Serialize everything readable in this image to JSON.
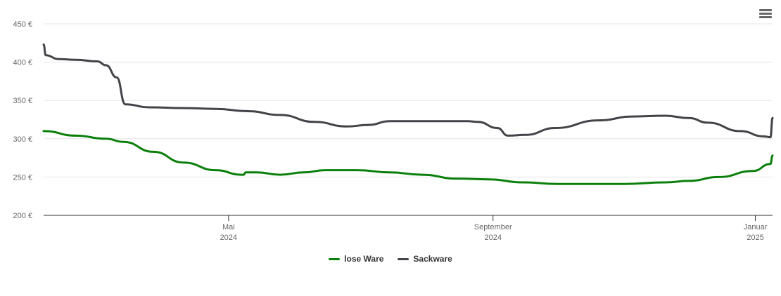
{
  "menu": {
    "icon": "hamburger-menu-icon"
  },
  "chart_data": {
    "type": "line",
    "title": "",
    "xlabel": "",
    "ylabel": "",
    "ylim": [
      200,
      450
    ],
    "yticks": [
      200,
      250,
      300,
      350,
      400,
      450
    ],
    "ytick_labels": [
      "200 €",
      "250 €",
      "300 €",
      "350 €",
      "400 €",
      "450 €"
    ],
    "xlim": [
      "2024-02-05",
      "2025-01-09"
    ],
    "xticks": [
      {
        "date": "2024-05-01",
        "line1": "Mai",
        "line2": "2024"
      },
      {
        "date": "2024-09-01",
        "line1": "September",
        "line2": "2024"
      },
      {
        "date": "2025-01-01",
        "line1": "Januar",
        "line2": "2025"
      }
    ],
    "grid": true,
    "legend_position": "bottom",
    "series": [
      {
        "name": "lose Ware",
        "color": "#0b7f0b",
        "points": [
          [
            "2024-02-05",
            310
          ],
          [
            "2024-02-20",
            304
          ],
          [
            "2024-03-05",
            300
          ],
          [
            "2024-03-13",
            296
          ],
          [
            "2024-03-27",
            283
          ],
          [
            "2024-04-10",
            269
          ],
          [
            "2024-04-25",
            259
          ],
          [
            "2024-05-07",
            253
          ],
          [
            "2024-05-08",
            253
          ],
          [
            "2024-05-09",
            256
          ],
          [
            "2024-05-14",
            256
          ],
          [
            "2024-05-25",
            253
          ],
          [
            "2024-06-05",
            256
          ],
          [
            "2024-06-15",
            259
          ],
          [
            "2024-06-30",
            259
          ],
          [
            "2024-07-15",
            256
          ],
          [
            "2024-07-30",
            253
          ],
          [
            "2024-08-15",
            248
          ],
          [
            "2024-08-30",
            247
          ],
          [
            "2024-09-15",
            243
          ],
          [
            "2024-10-01",
            241
          ],
          [
            "2024-10-15",
            241
          ],
          [
            "2024-11-01",
            241
          ],
          [
            "2024-11-20",
            243
          ],
          [
            "2024-12-01",
            245
          ],
          [
            "2024-12-15",
            250
          ],
          [
            "2024-12-31",
            258
          ],
          [
            "2025-01-08",
            267
          ],
          [
            "2025-01-09",
            278
          ]
        ]
      },
      {
        "name": "Sackware",
        "color": "#434348",
        "points": [
          [
            "2024-02-05",
            423
          ],
          [
            "2024-02-06",
            409
          ],
          [
            "2024-02-12",
            404
          ],
          [
            "2024-02-20",
            403
          ],
          [
            "2024-03-01",
            401
          ],
          [
            "2024-03-05",
            396
          ],
          [
            "2024-03-10",
            380
          ],
          [
            "2024-03-14",
            345
          ],
          [
            "2024-03-25",
            341
          ],
          [
            "2024-04-10",
            340
          ],
          [
            "2024-04-25",
            339
          ],
          [
            "2024-05-10",
            336
          ],
          [
            "2024-05-25",
            331
          ],
          [
            "2024-06-10",
            322
          ],
          [
            "2024-06-25",
            316
          ],
          [
            "2024-07-05",
            318
          ],
          [
            "2024-07-15",
            323
          ],
          [
            "2024-08-01",
            323
          ],
          [
            "2024-08-15",
            323
          ],
          [
            "2024-08-20",
            323
          ],
          [
            "2024-08-25",
            322
          ],
          [
            "2024-09-03",
            314
          ],
          [
            "2024-09-08",
            304
          ],
          [
            "2024-09-16",
            305
          ],
          [
            "2024-09-30",
            314
          ],
          [
            "2024-10-20",
            324
          ],
          [
            "2024-11-05",
            329
          ],
          [
            "2024-11-20",
            330
          ],
          [
            "2024-12-01",
            327
          ],
          [
            "2024-12-10",
            321
          ],
          [
            "2024-12-25",
            310
          ],
          [
            "2025-01-05",
            303
          ],
          [
            "2025-01-08",
            302
          ],
          [
            "2025-01-09",
            327
          ]
        ]
      }
    ]
  }
}
